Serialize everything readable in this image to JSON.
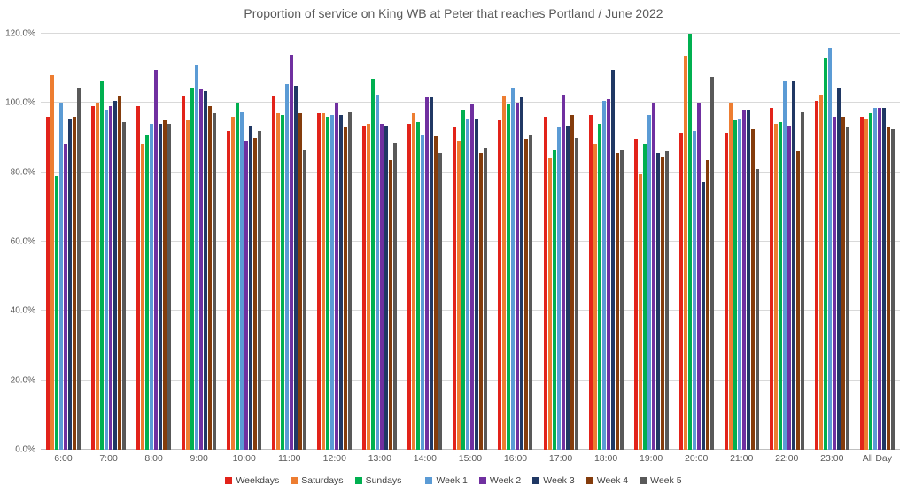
{
  "chart": {
    "title": "Proportion of service on King WB at Peter that reaches Portland / June 2022"
  },
  "chart_data": {
    "type": "bar",
    "title": "Proportion of service on King WB at Peter that reaches Portland / June 2022",
    "xlabel": "",
    "ylabel": "",
    "ylim": [
      0,
      120
    ],
    "yticks": [
      0,
      20,
      40,
      60,
      80,
      100,
      120
    ],
    "ytick_format": "percent_one_decimal",
    "grid": true,
    "legend_position": "bottom",
    "categories": [
      "6:00",
      "7:00",
      "8:00",
      "9:00",
      "10:00",
      "11:00",
      "12:00",
      "13:00",
      "14:00",
      "15:00",
      "16:00",
      "17:00",
      "18:00",
      "19:00",
      "20:00",
      "21:00",
      "22:00",
      "23:00",
      "All Day"
    ],
    "series": [
      {
        "name": "Weekdays",
        "color": "#e2231a",
        "values": [
          96,
          99,
          99,
          102,
          92,
          102,
          97,
          93.5,
          94,
          93,
          95,
          96,
          96.5,
          89.5,
          91.5,
          91.5,
          98.5,
          100.5,
          96
        ]
      },
      {
        "name": "Saturdays",
        "color": "#ed7d31",
        "values": [
          108,
          100,
          88,
          95,
          96,
          97,
          97,
          94,
          97,
          89,
          102,
          84,
          88,
          79.5,
          113.5,
          100,
          94,
          102.5,
          95.5
        ]
      },
      {
        "name": "Sundays",
        "color": "#00b050",
        "values": [
          79,
          106.5,
          91,
          104.5,
          100,
          96.5,
          96,
          107,
          94.5,
          98,
          99.5,
          86.5,
          94,
          88,
          120,
          95,
          94.5,
          113,
          97
        ]
      },
      {
        "name": "Week 1",
        "color": "#5b9bd5",
        "values": [
          100,
          98,
          94,
          111,
          97.5,
          105.5,
          96.5,
          102.5,
          91,
          95.5,
          104.5,
          93,
          100.5,
          96.5,
          92,
          95.5,
          106.5,
          116,
          98.5
        ]
      },
      {
        "name": "Week 2",
        "color": "#7030a0",
        "values": [
          88,
          99,
          109.5,
          104,
          89,
          114,
          100,
          94,
          101.5,
          99.5,
          100,
          102.5,
          101,
          100,
          100,
          98,
          93.5,
          96,
          98.5
        ]
      },
      {
        "name": "Week 3",
        "color": "#203864",
        "values": [
          95.5,
          100.5,
          94,
          103.5,
          93.5,
          105,
          96.5,
          93.5,
          101.5,
          95.5,
          101.5,
          93.5,
          109.5,
          85.5,
          77,
          98,
          106.5,
          104.5,
          98.5
        ]
      },
      {
        "name": "Week 4",
        "color": "#843c0c",
        "values": [
          96,
          102,
          95,
          99,
          90,
          97,
          93,
          83.5,
          90.5,
          85.5,
          89.5,
          96.5,
          85.5,
          84.5,
          83.5,
          92.5,
          86,
          96,
          93
        ]
      },
      {
        "name": "Week 5",
        "color": "#595959",
        "values": [
          104.5,
          94.5,
          94,
          97,
          92,
          86.5,
          97.5,
          88.5,
          85.5,
          87,
          91,
          90,
          86.5,
          86,
          107.5,
          81,
          97.5,
          93,
          92.5
        ]
      }
    ]
  }
}
